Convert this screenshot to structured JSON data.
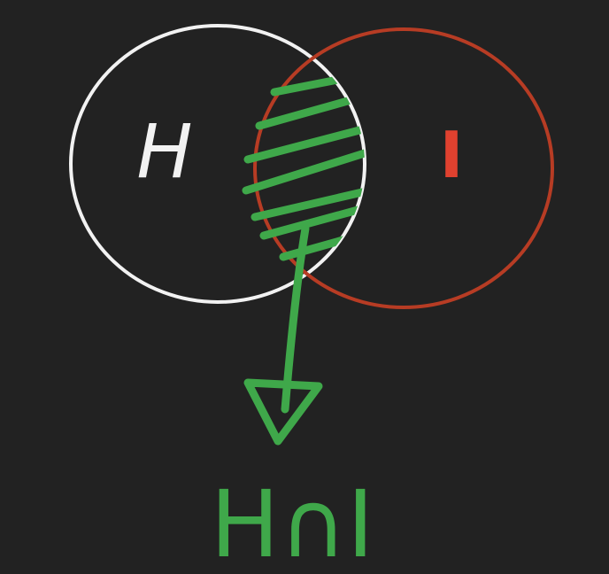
{
  "diagram": {
    "set_a": {
      "label": "H",
      "color": "#f2f2f2"
    },
    "set_b": {
      "label": "I",
      "color": "#c23a22"
    },
    "intersection": {
      "label": "H∩I",
      "color": "#3fa84a",
      "shaded": true
    }
  },
  "colors": {
    "background": "#222222",
    "text_a": "#f2f2f2",
    "text_b": "#e0412f",
    "accent": "#3fa84a"
  }
}
